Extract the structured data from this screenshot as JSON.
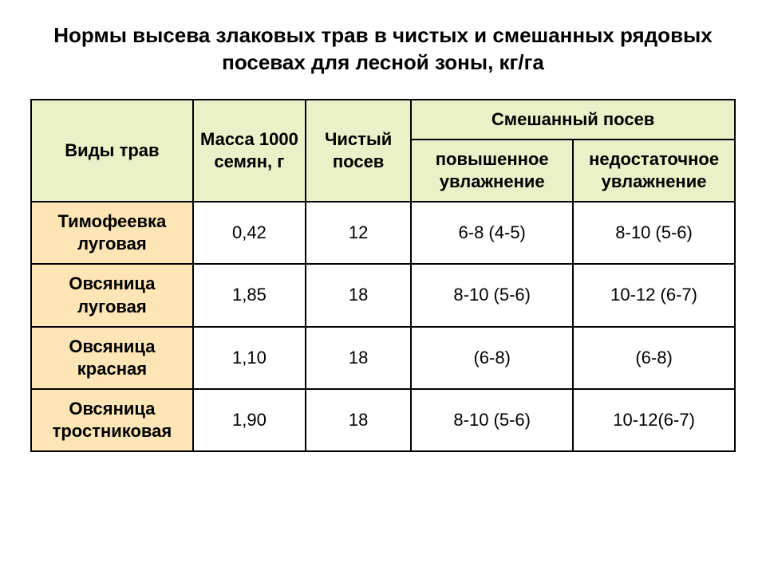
{
  "title": "Нормы высева злаковых трав в чистых и смешанных рядовых посевах для лесной зоны, кг/га",
  "title_fontsize": 26,
  "colors": {
    "header_bg": "#eaf1c8",
    "rowlabel_bg": "#fde5b5",
    "cell_bg": "#ffffff",
    "border": "#000000",
    "text": "#000000"
  },
  "fontsize": {
    "header": 22,
    "cell": 22
  },
  "col_widths_pct": [
    23,
    16,
    15,
    23,
    23
  ],
  "header": {
    "c0": "Виды трав",
    "c1": "Масса 1000 семян, г",
    "c2": "Чистый посев",
    "c3_group": "Смешанный посев",
    "c3a": "повышенное увлажнение",
    "c3b": "недостаточное увлажнение"
  },
  "rows": [
    {
      "label": "Тимофеевка луговая",
      "mass": "0,42",
      "pure": "12",
      "wet": "6-8 (4-5)",
      "dry": "8-10 (5-6)"
    },
    {
      "label": "Овсяница луговая",
      "mass": "1,85",
      "pure": "18",
      "wet": "8-10 (5-6)",
      "dry": "10-12 (6-7)"
    },
    {
      "label": "Овсяница красная",
      "mass": "1,10",
      "pure": "18",
      "wet": "(6-8)",
      "dry": "(6-8)"
    },
    {
      "label": "Овсяница тростниковая",
      "mass": "1,90",
      "pure": "18",
      "wet": "8-10 (5-6)",
      "dry": "10-12(6-7)"
    }
  ]
}
